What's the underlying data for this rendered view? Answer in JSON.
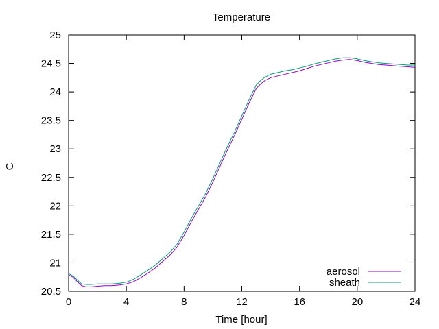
{
  "chart_data": {
    "type": "line",
    "title": "Temperature",
    "xlabel": "Time [hour]",
    "ylabel": "C",
    "xlim": [
      0,
      24
    ],
    "ylim": [
      20.5,
      25
    ],
    "xticks": [
      0,
      4,
      8,
      12,
      16,
      20,
      24
    ],
    "yticks": [
      20.5,
      21,
      21.5,
      22,
      22.5,
      23,
      23.5,
      24,
      24.5,
      25
    ],
    "ytick_labels": [
      "20.5",
      "21",
      "21.5",
      "22",
      "22.5",
      "23",
      "23.5",
      "24",
      "24.5",
      "25"
    ],
    "grid": false,
    "legend_position": "bottom-right",
    "series": [
      {
        "name": "aerosol",
        "color": "#9400d3",
        "x": [
          0,
          0.3,
          0.6,
          0.9,
          1.2,
          1.6,
          2,
          2.5,
          3,
          3.5,
          4,
          4.5,
          5,
          5.5,
          6,
          6.5,
          7,
          7.5,
          8,
          8.5,
          9,
          9.5,
          10,
          10.5,
          11,
          11.5,
          12,
          12.5,
          13,
          13.3,
          13.6,
          14,
          14.5,
          15,
          15.5,
          16,
          16.5,
          17,
          17.5,
          18,
          18.5,
          19,
          19.5,
          20,
          20.5,
          21,
          21.5,
          22,
          22.5,
          23,
          23.5,
          24
        ],
        "y": [
          20.79,
          20.75,
          20.67,
          20.6,
          20.58,
          20.58,
          20.59,
          20.6,
          20.6,
          20.61,
          20.63,
          20.67,
          20.74,
          20.82,
          20.91,
          21.02,
          21.13,
          21.27,
          21.48,
          21.72,
          21.94,
          22.16,
          22.42,
          22.7,
          22.98,
          23.24,
          23.52,
          23.8,
          24.06,
          24.14,
          24.2,
          24.25,
          24.28,
          24.31,
          24.34,
          24.37,
          24.41,
          24.45,
          24.48,
          24.51,
          24.54,
          24.56,
          24.57,
          24.55,
          24.52,
          24.5,
          24.48,
          24.47,
          24.46,
          24.45,
          24.44,
          24.43
        ]
      },
      {
        "name": "sheath",
        "color": "#009e73",
        "x": [
          0,
          0.3,
          0.6,
          0.9,
          1.2,
          1.6,
          2,
          2.5,
          3,
          3.5,
          4,
          4.5,
          5,
          5.5,
          6,
          6.5,
          7,
          7.5,
          8,
          8.5,
          9,
          9.5,
          10,
          10.5,
          11,
          11.5,
          12,
          12.5,
          13,
          13.3,
          13.6,
          14,
          14.5,
          15,
          15.5,
          16,
          16.5,
          17,
          17.5,
          18,
          18.5,
          19,
          19.5,
          20,
          20.5,
          21,
          21.5,
          22,
          22.5,
          23,
          23.5,
          24
        ],
        "y": [
          20.81,
          20.77,
          20.7,
          20.63,
          20.62,
          20.62,
          20.63,
          20.63,
          20.63,
          20.64,
          20.66,
          20.71,
          20.79,
          20.87,
          20.96,
          21.07,
          21.18,
          21.32,
          21.54,
          21.78,
          22.0,
          22.22,
          22.48,
          22.76,
          23.04,
          23.3,
          23.58,
          23.86,
          24.12,
          24.2,
          24.26,
          24.31,
          24.34,
          24.37,
          24.39,
          24.42,
          24.45,
          24.49,
          24.52,
          24.55,
          24.58,
          24.6,
          24.6,
          24.58,
          24.55,
          24.53,
          24.51,
          24.5,
          24.49,
          24.48,
          24.47,
          24.47
        ]
      }
    ]
  }
}
